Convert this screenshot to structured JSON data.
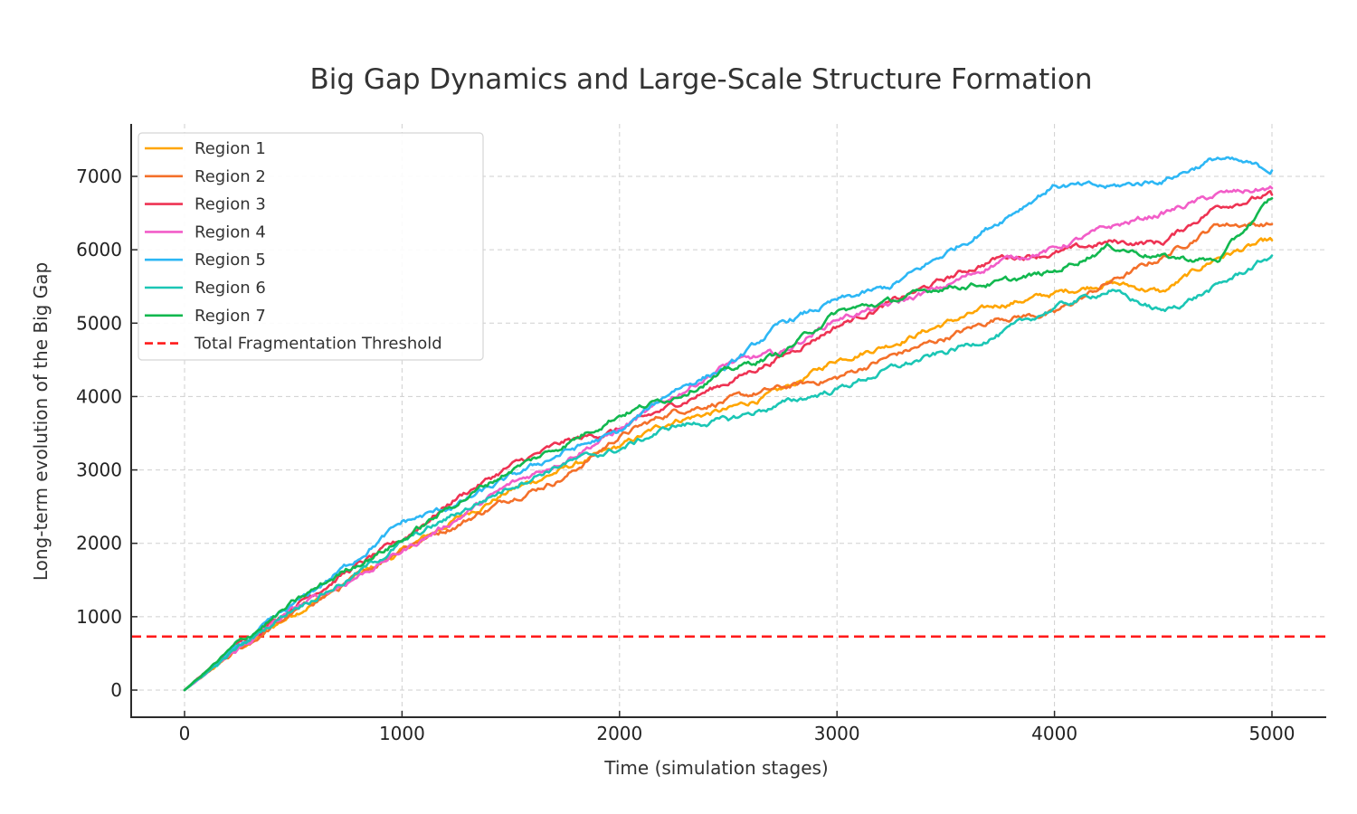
{
  "chart_data": {
    "type": "line",
    "title": "Big Gap Dynamics and Large-Scale Structure Formation",
    "xlabel": "Time (simulation stages)",
    "ylabel": "Long-term evolution of the Big Gap",
    "xlim": [
      -250,
      5250
    ],
    "ylim": [
      -350,
      7600
    ],
    "xticks": [
      0,
      1000,
      2000,
      3000,
      4000,
      5000
    ],
    "yticks": [
      0,
      1000,
      2000,
      3000,
      4000,
      5000,
      6000,
      7000
    ],
    "grid": true,
    "legend_position": "top-left",
    "x": [
      0,
      250,
      500,
      750,
      1000,
      1250,
      1500,
      1750,
      2000,
      2250,
      2500,
      2750,
      3000,
      3250,
      3500,
      3750,
      4000,
      4250,
      4500,
      4750,
      5000
    ],
    "series": [
      {
        "name": "Region 1",
        "color": "#FFA500",
        "values": [
          0,
          560,
          1040,
          1470,
          1890,
          2330,
          2720,
          3020,
          3310,
          3680,
          3820,
          4080,
          4510,
          4720,
          5000,
          5250,
          5400,
          5560,
          5420,
          5900,
          6130
        ]
      },
      {
        "name": "Region 2",
        "color": "#F4702A",
        "values": [
          0,
          540,
          1050,
          1450,
          1950,
          2250,
          2620,
          2900,
          3460,
          3800,
          3950,
          4120,
          4250,
          4550,
          4800,
          5080,
          5130,
          5550,
          5900,
          6350,
          6350
        ]
      },
      {
        "name": "Region 3",
        "color": "#EE3353",
        "values": [
          0,
          620,
          1150,
          1620,
          2045,
          2620,
          3050,
          3380,
          3550,
          3880,
          4200,
          4550,
          4965,
          5280,
          5600,
          5900,
          5950,
          6100,
          6100,
          6600,
          6750
        ]
      },
      {
        "name": "Region 4",
        "color": "#F25DC8",
        "values": [
          0,
          560,
          1100,
          1480,
          1890,
          2330,
          2800,
          3150,
          3550,
          4000,
          4450,
          4600,
          5065,
          5250,
          5500,
          5850,
          6010,
          6300,
          6500,
          6750,
          6840
        ]
      },
      {
        "name": "Region 5",
        "color": "#2DB7F5",
        "values": [
          0,
          590,
          1150,
          1700,
          2280,
          2520,
          2900,
          3250,
          3510,
          4100,
          4400,
          5000,
          5300,
          5500,
          5950,
          6400,
          6880,
          6850,
          6950,
          7250,
          7080
        ]
      },
      {
        "name": "Region 6",
        "color": "#1BC6B5",
        "values": [
          0,
          580,
          1120,
          1500,
          2000,
          2400,
          2780,
          3100,
          3280,
          3600,
          3680,
          3900,
          4100,
          4380,
          4600,
          4850,
          5210,
          5450,
          5150,
          5500,
          5920
        ]
      },
      {
        "name": "Region 7",
        "color": "#12B84F",
        "values": [
          0,
          640,
          1180,
          1650,
          2045,
          2550,
          3000,
          3350,
          3760,
          4000,
          4350,
          4600,
          5150,
          5300,
          5500,
          5550,
          5700,
          6050,
          5900,
          5850,
          6700
        ]
      }
    ],
    "reference_lines": [
      {
        "name": "Total Fragmentation Threshold",
        "orientation": "horizontal",
        "value": 730,
        "color": "#FF1A1A",
        "style": "dashed"
      }
    ],
    "legend": [
      "Region 1",
      "Region 2",
      "Region 3",
      "Region 4",
      "Region 5",
      "Region 6",
      "Region 7",
      "Total Fragmentation Threshold"
    ]
  }
}
